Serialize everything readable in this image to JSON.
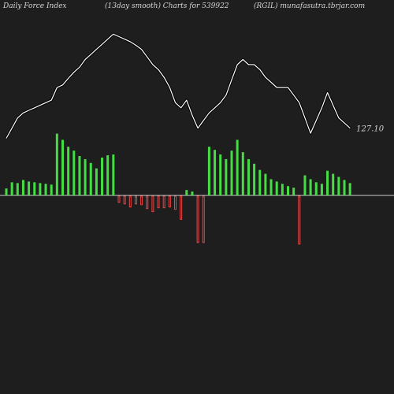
{
  "header": {
    "left": "Daily Force  Index",
    "middle": "(13day smooth) Charts for 539922",
    "right": "(RGIL) munafasutra.tbrjar.com"
  },
  "colors": {
    "background": "#1e1e1e",
    "positive_bar": "#44dd44",
    "negative_bar": "#ee4444",
    "line": "#ffffff",
    "zero_line": "#cccccc"
  },
  "chart_data": {
    "type": "bar",
    "title": "",
    "last_value_label": "127.10",
    "zero_line": true,
    "grid": false,
    "ylim": [
      -100,
      100
    ],
    "x": [
      1,
      2,
      3,
      4,
      5,
      6,
      7,
      8,
      9,
      10,
      11,
      12,
      13,
      14,
      15,
      16,
      17,
      18,
      19,
      20,
      21,
      22,
      23,
      24,
      25,
      26,
      27,
      28,
      29,
      30,
      31,
      32,
      33,
      34,
      35,
      36,
      37,
      38,
      39,
      40,
      41,
      42,
      43,
      44,
      45,
      46,
      47,
      48,
      49,
      50,
      51,
      52,
      53,
      54,
      55,
      56,
      57,
      58,
      59,
      60,
      61,
      62
    ],
    "series": [
      {
        "name": "",
        "type": "bar",
        "values": [
          9,
          17,
          16,
          20,
          18,
          17,
          16,
          15,
          14,
          80,
          72,
          63,
          58,
          51,
          47,
          42,
          35,
          49,
          52,
          53,
          -8,
          -10,
          -14,
          -10,
          -11,
          -16,
          -20,
          -15,
          -15,
          -14,
          -17,
          -30,
          7,
          5,
          -60,
          -60,
          63,
          59,
          53,
          47,
          58,
          72,
          56,
          47,
          41,
          33,
          28,
          21,
          18,
          15,
          12,
          10,
          -62,
          26,
          21,
          17,
          15,
          32,
          28,
          24,
          20,
          16
        ]
      },
      {
        "name": "",
        "type": "line",
        "values": [
          100,
          120,
          140,
          150,
          155,
          160,
          165,
          170,
          175,
          200,
          205,
          218,
          230,
          240,
          255,
          265,
          275,
          285,
          295,
          305,
          300,
          295,
          290,
          283,
          275,
          260,
          245,
          235,
          220,
          200,
          170,
          160,
          175,
          145,
          120,
          135,
          150,
          160,
          170,
          185,
          215,
          245,
          255,
          245,
          245,
          235,
          220,
          210,
          200,
          200,
          200,
          185,
          170,
          140,
          110,
          135,
          160,
          190,
          165,
          140,
          130,
          120
        ]
      }
    ]
  }
}
